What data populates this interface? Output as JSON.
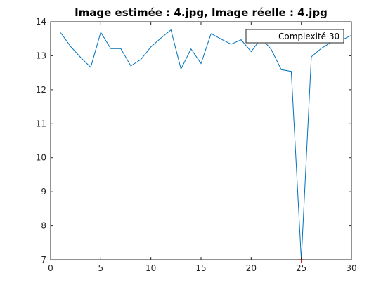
{
  "chart_data": {
    "type": "line",
    "title": "Image estimée : 4.jpg, Image réelle : 4.jpg",
    "xlabel": "",
    "ylabel": "",
    "xlim": [
      0,
      30
    ],
    "ylim": [
      7,
      14
    ],
    "xticks": [
      0,
      5,
      10,
      15,
      20,
      25,
      30
    ],
    "yticks": [
      7,
      8,
      9,
      10,
      11,
      12,
      13,
      14
    ],
    "grid": false,
    "legend_position": "top-right",
    "series": [
      {
        "name": "Complexité 30",
        "color": "#0072bd",
        "x": [
          1,
          2,
          3,
          4,
          5,
          6,
          7,
          8,
          9,
          10,
          11,
          12,
          13,
          14,
          15,
          16,
          17,
          18,
          19,
          20,
          21,
          22,
          23,
          24,
          25,
          26,
          27,
          28,
          29,
          30
        ],
        "y": [
          13.68,
          13.27,
          12.95,
          12.66,
          13.69,
          13.21,
          13.21,
          12.7,
          12.89,
          13.26,
          13.52,
          13.76,
          12.61,
          13.2,
          12.77,
          13.65,
          13.49,
          13.34,
          13.47,
          13.12,
          13.52,
          13.19,
          12.59,
          12.54,
          7.0,
          12.97,
          13.22,
          13.4,
          13.46,
          13.6
        ]
      }
    ],
    "marker": {
      "x": 25,
      "y": 7.0,
      "symbol": "+",
      "color": "#e01010"
    }
  }
}
